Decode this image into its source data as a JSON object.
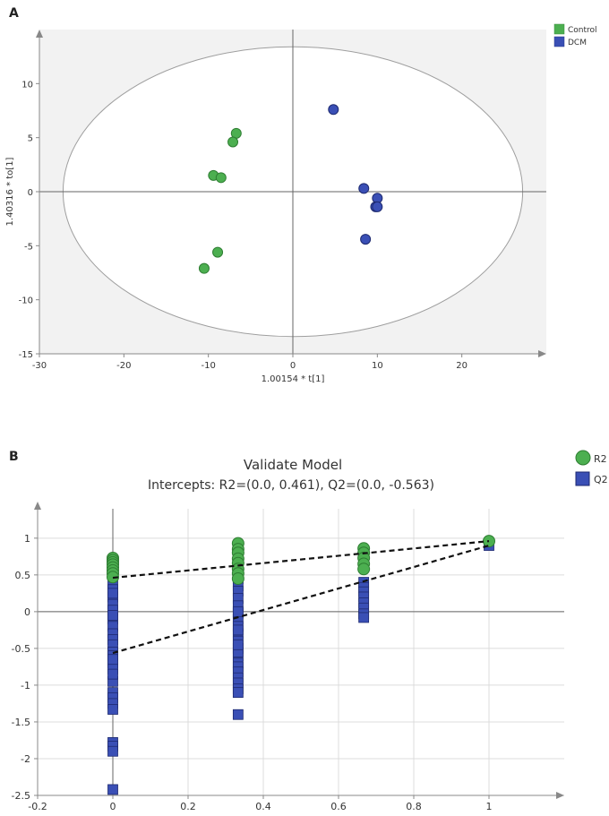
{
  "chart_data": [
    {
      "panel_label": "A",
      "type": "scatter",
      "title": "",
      "xlabel": "1.00154 * t[1]",
      "ylabel": "1.40316 * to[1]",
      "xlim": [
        -30,
        30
      ],
      "ylim": [
        -15,
        15
      ],
      "xticks": [
        "-30",
        "-20",
        "-10",
        "0",
        "10",
        "20"
      ],
      "yticks": [
        "-15",
        "-10",
        "-5",
        "0",
        "5",
        "10"
      ],
      "ellipse": {
        "cx": 0,
        "cy": 0,
        "rx": 27.2,
        "ry": 13.4
      },
      "legend_position": "top-right",
      "series": [
        {
          "name": "Control",
          "color": "#4caf50",
          "points": [
            [
              -6.7,
              5.4
            ],
            [
              -7.1,
              4.6
            ],
            [
              -9.4,
              1.5
            ],
            [
              -8.5,
              1.3
            ],
            [
              -8.9,
              -5.6
            ],
            [
              -10.5,
              -7.1
            ]
          ]
        },
        {
          "name": "DCM",
          "color": "#3a4fb5",
          "points": [
            [
              4.8,
              7.6
            ],
            [
              8.4,
              0.3
            ],
            [
              10.0,
              -0.6
            ],
            [
              9.8,
              -1.4
            ],
            [
              10.0,
              -1.4
            ],
            [
              8.6,
              -4.4
            ]
          ]
        }
      ]
    },
    {
      "panel_label": "B",
      "type": "scatter",
      "title": "Validate Model",
      "subtitle": "Intercepts: R2=(0.0, 0.461), Q2=(0.0, -0.563)",
      "xlabel": "",
      "ylabel": "",
      "xlim": [
        -0.2,
        1.2
      ],
      "ylim": [
        -2.5,
        1.4
      ],
      "xticks": [
        "-0.2",
        "0",
        "0.2",
        "0.4",
        "0.6",
        "0.8",
        "1"
      ],
      "yticks": [
        "-2.5",
        "-2",
        "-1.5",
        "-1",
        "-0.5",
        "0",
        "0.5",
        "1"
      ],
      "grid": true,
      "legend_position": "top-right",
      "series": [
        {
          "name": "R2",
          "color": "#4caf50",
          "marker": "circle",
          "x": [
            0,
            0,
            0,
            0,
            0,
            0,
            0,
            0,
            0.333,
            0.333,
            0.333,
            0.333,
            0.333,
            0.333,
            0.333,
            0.333,
            0.667,
            0.667,
            0.667,
            0.667,
            0.667,
            1
          ],
          "y": [
            0.73,
            0.7,
            0.67,
            0.64,
            0.6,
            0.56,
            0.52,
            0.47,
            0.93,
            0.85,
            0.8,
            0.72,
            0.66,
            0.58,
            0.52,
            0.45,
            0.86,
            0.8,
            0.73,
            0.65,
            0.58,
            0.96
          ]
        },
        {
          "name": "Q2",
          "color": "#3a4fb5",
          "marker": "square",
          "x": [
            0,
            0,
            0,
            0,
            0,
            0,
            0,
            0,
            0,
            0,
            0,
            0,
            0,
            0,
            0,
            0,
            0,
            0,
            0,
            0,
            0,
            0,
            0,
            0,
            0,
            0,
            0,
            0.333,
            0.333,
            0.333,
            0.333,
            0.333,
            0.333,
            0.333,
            0.333,
            0.333,
            0.333,
            0.333,
            0.333,
            0.333,
            0.333,
            0.333,
            0.333,
            0.333,
            0.333,
            0.333,
            0.333,
            0.333,
            0.333,
            0.333,
            0.333,
            0.667,
            0.667,
            0.667,
            0.667,
            0.667,
            0.667,
            0.667,
            0.667,
            1
          ],
          "y": [
            0.38,
            0.3,
            0.2,
            0.1,
            0.02,
            -0.1,
            -0.2,
            -0.3,
            -0.38,
            -0.45,
            -0.55,
            -0.6,
            -0.7,
            -0.78,
            -0.95,
            -1.1,
            -1.17,
            -1.25,
            -1.33,
            -1.78,
            -1.83,
            -1.9,
            -2.42,
            0.25,
            -0.05,
            -0.65,
            -0.85,
            0.45,
            0.35,
            0.28,
            0.18,
            0.08,
            -0.02,
            -0.1,
            -0.2,
            -0.3,
            -0.4,
            -0.5,
            -0.6,
            -0.7,
            -0.75,
            -0.82,
            -0.9,
            -0.97,
            -1.05,
            -1.1,
            -1.4,
            -0.25,
            -0.55,
            0.0,
            -0.45,
            0.4,
            0.33,
            0.27,
            0.2,
            0.12,
            0.05,
            -0.03,
            -0.08,
            0.9
          ]
        }
      ],
      "regression_lines": [
        {
          "name": "R2",
          "from": [
            0,
            0.461
          ],
          "to": [
            1,
            0.96
          ]
        },
        {
          "name": "Q2",
          "from": [
            0,
            -0.563
          ],
          "to": [
            1,
            0.9
          ]
        }
      ]
    }
  ]
}
